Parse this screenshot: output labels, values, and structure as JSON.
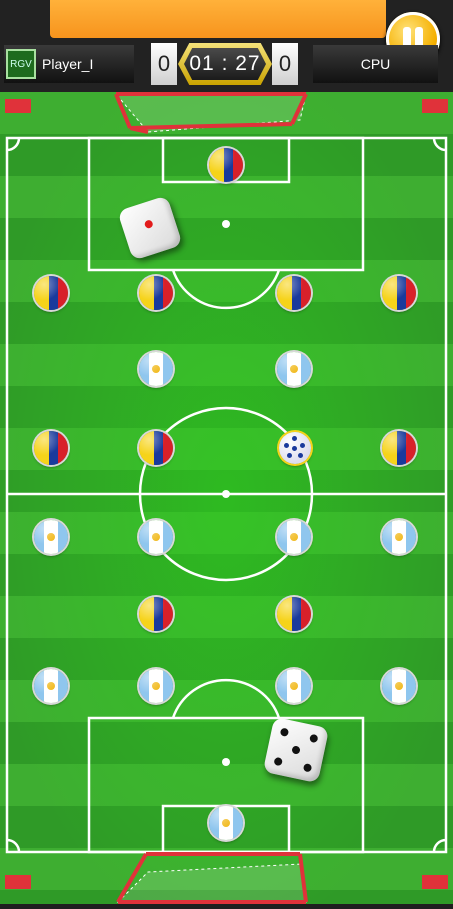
{
  "header": {
    "player_name": "Player_I",
    "opponent_name": "CPU",
    "player_score": "0",
    "opponent_score": "0",
    "timer": "01 : 27",
    "avatar_text": "RGV"
  },
  "colors": {
    "field_green_dark": "#2f9a27",
    "field_green_light": "#47b83a",
    "lines": "#ffffff",
    "goal_red": "#e0323a",
    "accent_orange": "#f7941d",
    "pause_gold": "#f5b000"
  },
  "game": {
    "teams": [
      {
        "name": "colombia-team",
        "flag_colors": [
          "#f6d31a",
          "#1a3a9c",
          "#d8202a"
        ]
      },
      {
        "name": "argentina-team",
        "flag_colors": [
          "#8fc6ee",
          "#ffffff",
          "#f1b91c"
        ]
      }
    ],
    "die_values": [
      1,
      5
    ]
  }
}
